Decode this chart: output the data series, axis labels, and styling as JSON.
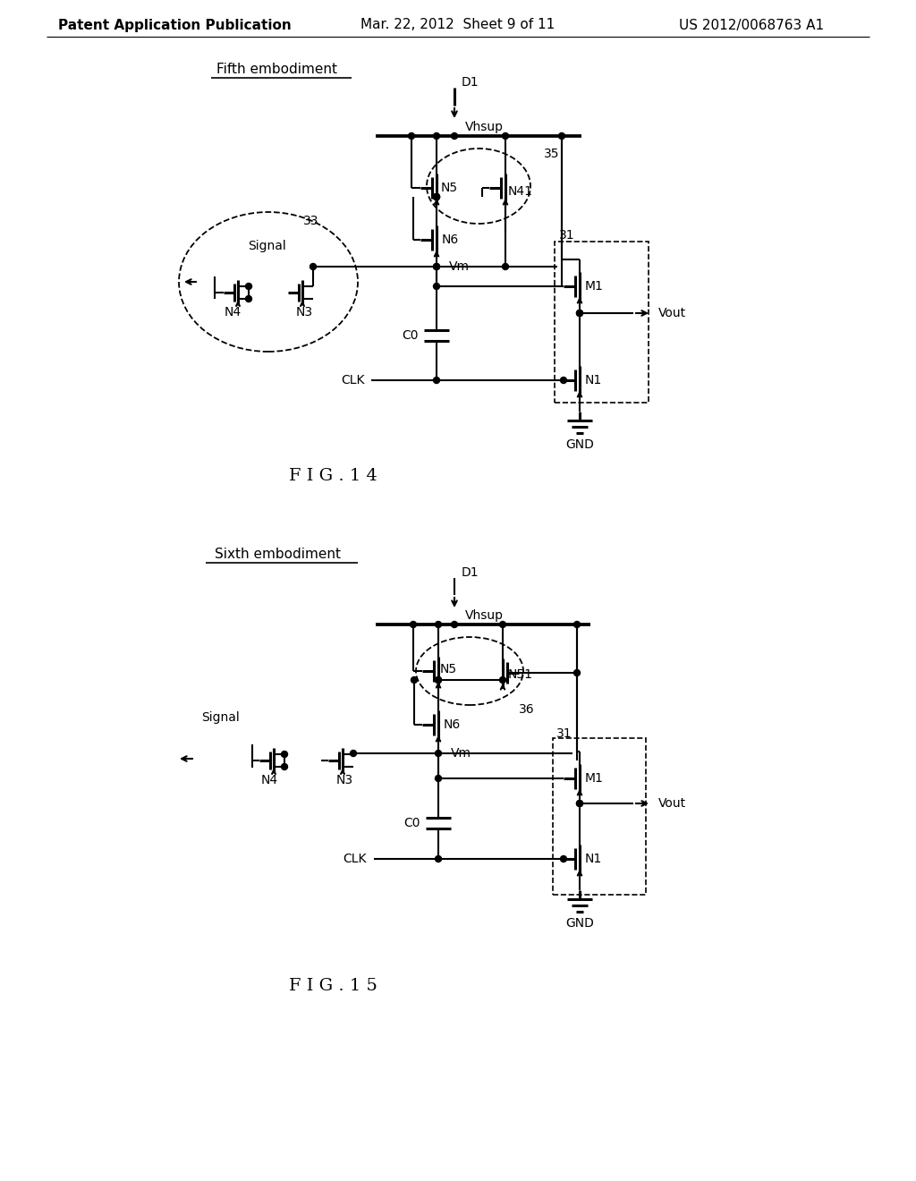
{
  "background_color": "#ffffff",
  "header_left": "Patent Application Publication",
  "header_mid": "Mar. 22, 2012  Sheet 9 of 11",
  "header_right": "US 2012/0068763 A1",
  "fig14_title": "Fifth embodiment",
  "fig14_label": "F I G . 1 4",
  "fig15_title": "Sixth embodiment",
  "fig15_label": "F I G . 1 5",
  "line_color": "#000000",
  "lw": 1.5,
  "lw2": 2.2
}
